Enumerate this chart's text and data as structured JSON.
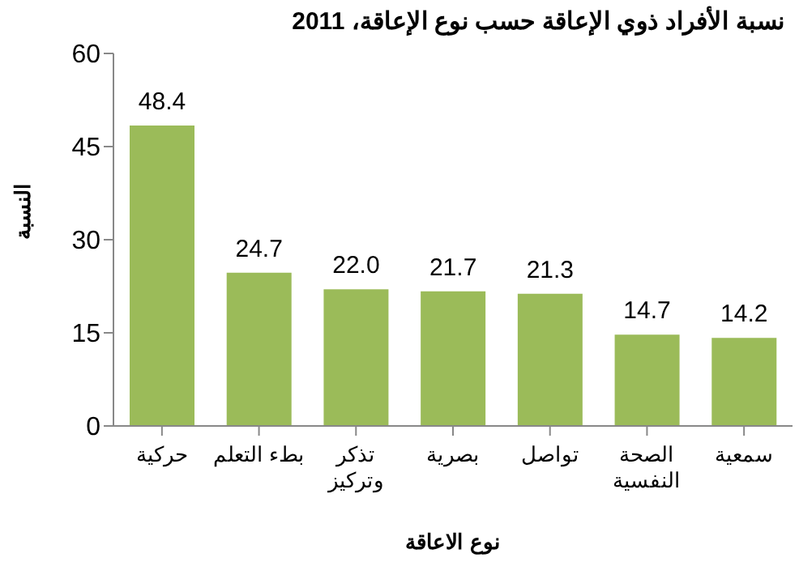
{
  "chart_data": {
    "type": "bar",
    "title": "نسبة الأفراد ذوي الإعاقة حسب نوع الإعاقة، 2011",
    "xlabel": "نوع الاعاقة",
    "ylabel": "النسبة",
    "categories": [
      "حركية",
      "بطء التعلم",
      "تذكر وتركيز",
      "بصرية",
      "تواصل",
      "الصحة النفسية",
      "سمعية"
    ],
    "values": [
      48.4,
      24.7,
      22.0,
      21.7,
      21.3,
      14.7,
      14.2
    ],
    "value_labels": [
      "48.4",
      "24.7",
      "22.0",
      "21.7",
      "21.3",
      "14.7",
      "14.2"
    ],
    "color": "#9bbb59",
    "ylim": [
      0,
      60
    ],
    "yticks": [
      0,
      15,
      30,
      45,
      60
    ],
    "grid": false
  }
}
